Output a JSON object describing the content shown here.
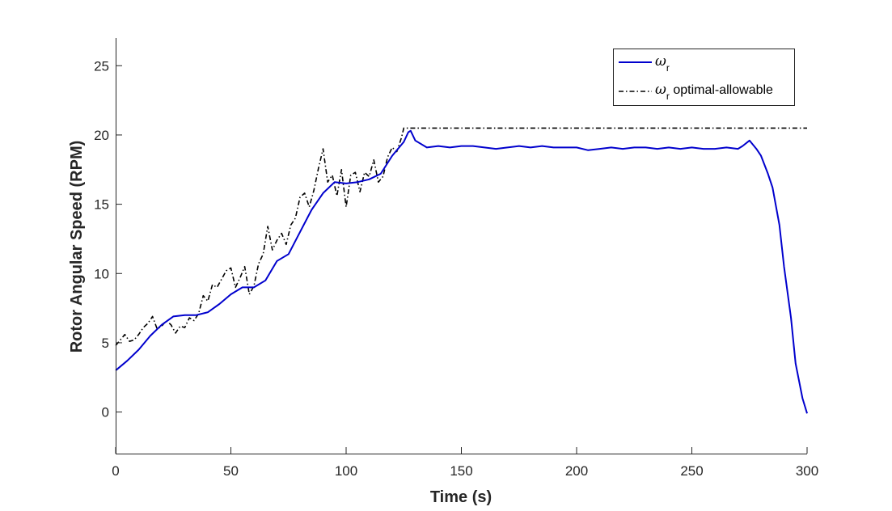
{
  "chart_data": {
    "type": "line",
    "xlabel": "Time (s)",
    "ylabel": "Rotor Angular Speed (RPM)",
    "xlim": [
      0,
      300
    ],
    "ylim": [
      -3,
      27
    ],
    "xticks": [
      0,
      50,
      100,
      150,
      200,
      250,
      300
    ],
    "yticks": [
      0,
      5,
      10,
      15,
      20,
      25
    ],
    "grid": false,
    "legend_position": "top-right",
    "series": [
      {
        "name": "ω_r",
        "name_symbol": "ω",
        "name_subscript": "r",
        "name_suffix": "",
        "color": "#0000cd",
        "line_style": "solid",
        "x": [
          0,
          5,
          10,
          15,
          20,
          25,
          30,
          35,
          40,
          45,
          50,
          55,
          60,
          65,
          70,
          75,
          80,
          85,
          90,
          95,
          100,
          105,
          110,
          115,
          120,
          125,
          127,
          128,
          130,
          135,
          140,
          145,
          150,
          155,
          160,
          165,
          170,
          175,
          180,
          185,
          190,
          195,
          200,
          205,
          210,
          215,
          220,
          225,
          230,
          235,
          240,
          245,
          250,
          255,
          260,
          265,
          270,
          272,
          275,
          278,
          280,
          283,
          285,
          288,
          290,
          293,
          295,
          298,
          300
        ],
        "y": [
          3.0,
          3.7,
          4.5,
          5.5,
          6.3,
          6.9,
          7.0,
          7.0,
          7.2,
          7.8,
          8.5,
          9.0,
          9.0,
          9.5,
          10.9,
          11.4,
          13.0,
          14.6,
          15.8,
          16.6,
          16.5,
          16.6,
          16.8,
          17.2,
          18.5,
          19.5,
          20.2,
          20.3,
          19.6,
          19.1,
          19.2,
          19.1,
          19.2,
          19.2,
          19.1,
          19.0,
          19.1,
          19.2,
          19.1,
          19.2,
          19.1,
          19.1,
          19.1,
          18.9,
          19.0,
          19.1,
          19.0,
          19.1,
          19.1,
          19.0,
          19.1,
          19.0,
          19.1,
          19.0,
          19.0,
          19.1,
          19.0,
          19.2,
          19.6,
          19.0,
          18.5,
          17.2,
          16.2,
          13.5,
          10.5,
          6.8,
          3.5,
          1.0,
          -0.1
        ]
      },
      {
        "name": "ω_r optimal-allowable",
        "name_symbol": "ω",
        "name_subscript": "r",
        "name_suffix": " optimal-allowable",
        "color": "#000000",
        "line_style": "dash-dot",
        "x": [
          0,
          2,
          4,
          6,
          8,
          10,
          12,
          14,
          16,
          18,
          20,
          22,
          24,
          26,
          28,
          30,
          32,
          34,
          36,
          38,
          40,
          42,
          44,
          46,
          48,
          50,
          52,
          54,
          56,
          58,
          60,
          62,
          64,
          66,
          68,
          70,
          72,
          74,
          76,
          78,
          80,
          82,
          84,
          86,
          88,
          90,
          92,
          94,
          96,
          98,
          100,
          102,
          104,
          106,
          108,
          110,
          112,
          114,
          116,
          118,
          120,
          122,
          124,
          125,
          150,
          200,
          250,
          300
        ],
        "y": [
          4.8,
          5.2,
          5.6,
          5.1,
          5.2,
          5.6,
          6.1,
          6.4,
          6.9,
          6.0,
          6.2,
          6.6,
          6.3,
          5.7,
          6.2,
          6.1,
          6.8,
          6.6,
          7.1,
          8.4,
          8.0,
          9.2,
          9.0,
          9.6,
          10.2,
          10.4,
          9.0,
          9.7,
          10.5,
          8.5,
          9.1,
          10.7,
          11.4,
          13.4,
          11.7,
          12.4,
          12.9,
          12.1,
          13.5,
          14.0,
          15.5,
          15.8,
          14.8,
          16.0,
          17.6,
          19.0,
          16.6,
          17.1,
          15.6,
          17.5,
          14.8,
          17.1,
          17.3,
          15.9,
          17.3,
          17.0,
          18.2,
          16.6,
          17.0,
          18.4,
          19.1,
          18.8,
          19.8,
          20.5,
          20.5,
          20.5,
          20.5,
          20.5
        ]
      }
    ]
  }
}
